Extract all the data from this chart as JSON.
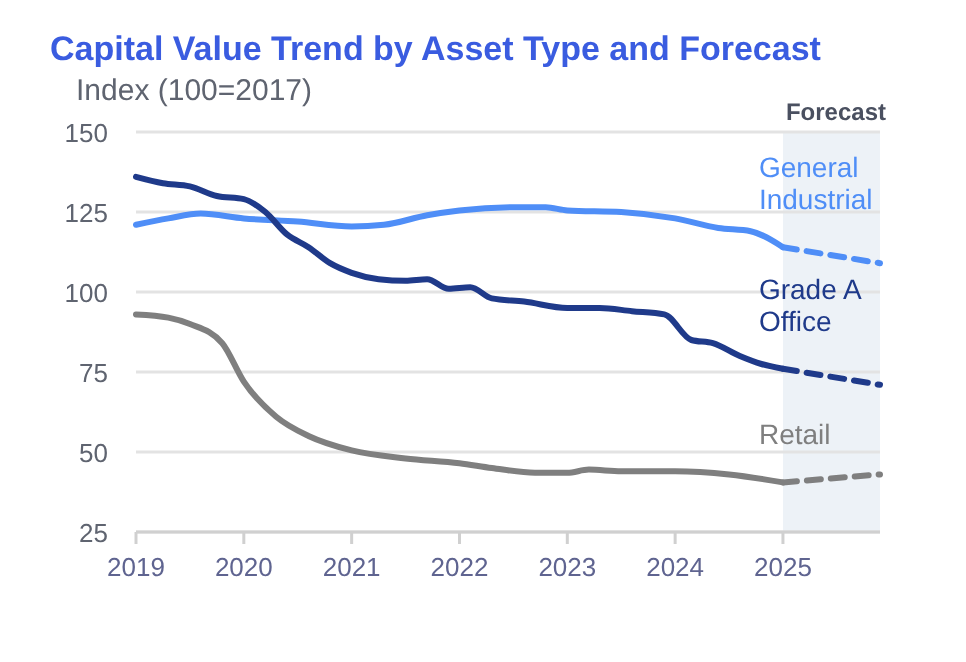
{
  "chart_data": {
    "type": "line",
    "title": "Capital Value Trend by Asset Type and Forecast",
    "ylabel": "Index (100=2017)",
    "xlim": [
      2019,
      2025.9
    ],
    "xticks": [
      2019,
      2020,
      2021,
      2022,
      2023,
      2024,
      2025
    ],
    "ylim": [
      25,
      150
    ],
    "yticks": [
      25,
      50,
      75,
      100,
      125,
      150
    ],
    "grid": "y",
    "legend": false,
    "marker": "none",
    "bands": [
      {
        "axis": "x",
        "from": 2025,
        "to": 2025.9,
        "label": "Forecast",
        "color": "#edf2f7"
      }
    ],
    "series": [
      {
        "name": "General Industrial",
        "color": "#4f8ef7",
        "line_style": "solid",
        "x": [
          2019,
          2019.3,
          2019.6,
          2020,
          2020.5,
          2021,
          2021.3,
          2021.7,
          2022,
          2022.5,
          2022.8,
          2023,
          2023.5,
          2024,
          2024.4,
          2024.7,
          2025
        ],
        "values": [
          121,
          123,
          124.5,
          123,
          122,
          120.5,
          121,
          124,
          125.5,
          126.5,
          126.5,
          125.5,
          125,
          123,
          120,
          119,
          114
        ]
      },
      {
        "color": "#4f8ef7",
        "line_style": "dashed",
        "x": [
          2025,
          2025.9
        ],
        "values": [
          114,
          109
        ]
      },
      {
        "name": "Grade A Office",
        "color": "#1f3a8a",
        "line_style": "solid",
        "x": [
          2019,
          2019.25,
          2019.5,
          2019.75,
          2020,
          2020.2,
          2020.4,
          2020.6,
          2020.8,
          2021,
          2021.25,
          2021.5,
          2021.7,
          2021.9,
          2022.1,
          2022.3,
          2022.6,
          2023,
          2023.3,
          2023.6,
          2023.9,
          2024.15,
          2024.35,
          2024.6,
          2024.8,
          2025
        ],
        "values": [
          136,
          134,
          133,
          130,
          129,
          125,
          118,
          114,
          109,
          106,
          104,
          103.5,
          104,
          101,
          101.5,
          98,
          97,
          95,
          95,
          94,
          93,
          85,
          84,
          80,
          77.5,
          76
        ]
      },
      {
        "color": "#1f3a8a",
        "line_style": "dashed",
        "x": [
          2025,
          2025.9
        ],
        "values": [
          76,
          71
        ]
      },
      {
        "name": "Retail",
        "color": "#7f7f7f",
        "line_style": "solid",
        "x": [
          2019,
          2019.3,
          2019.5,
          2019.8,
          2020,
          2020.3,
          2020.6,
          2021,
          2021.5,
          2022,
          2022.3,
          2022.7,
          2023,
          2023.2,
          2023.5,
          2024,
          2024.5,
          2025
        ],
        "values": [
          93,
          92,
          90,
          84,
          72,
          61,
          55,
          50.5,
          48,
          46.5,
          45,
          43.5,
          43.5,
          44.5,
          44,
          44,
          43,
          40.5
        ]
      },
      {
        "color": "#7f7f7f",
        "line_style": "dashed",
        "x": [
          2025,
          2025.9
        ],
        "values": [
          40.5,
          43
        ]
      }
    ]
  }
}
